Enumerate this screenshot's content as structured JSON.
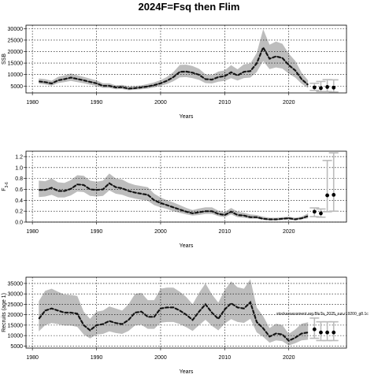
{
  "title": "2024F=Fsq then Flim",
  "note": "stockassessment.org BluTa_2025_run.r19200_g8.1c",
  "colors": {
    "band": "#bdbdbd",
    "line": "#222222",
    "proj": "#bbbbbb",
    "grid": "#000000"
  },
  "chart_data": [
    {
      "type": "line",
      "panel": "SSB",
      "ylabel": "SSB",
      "xlabel": "Years",
      "xlim": [
        1979,
        2029
      ],
      "ylim": [
        2000,
        31500
      ],
      "xticks": [
        1980,
        1990,
        2000,
        2010,
        2020
      ],
      "yticks": [
        5000,
        10000,
        15000,
        20000,
        25000,
        30000
      ],
      "grid": true,
      "x": [
        1981,
        1982,
        1983,
        1984,
        1985,
        1986,
        1987,
        1988,
        1989,
        1990,
        1991,
        1992,
        1993,
        1994,
        1995,
        1996,
        1997,
        1998,
        1999,
        2000,
        2001,
        2002,
        2003,
        2004,
        2005,
        2006,
        2007,
        2008,
        2009,
        2010,
        2011,
        2012,
        2013,
        2014,
        2015,
        2016,
        2017,
        2018,
        2019,
        2020,
        2021,
        2022,
        2023
      ],
      "estimate": [
        7000,
        6700,
        6100,
        7500,
        8000,
        8700,
        8100,
        7500,
        6800,
        6200,
        5100,
        5100,
        4400,
        4500,
        3900,
        4100,
        4400,
        4800,
        5400,
        6200,
        7300,
        8900,
        11200,
        11300,
        10800,
        9900,
        8000,
        7800,
        8900,
        9300,
        11000,
        9600,
        11200,
        11500,
        14900,
        21800,
        16900,
        17900,
        17200,
        14100,
        11800,
        8000,
        5500
      ],
      "lower": [
        6000,
        5700,
        5200,
        6300,
        6700,
        7200,
        6700,
        6200,
        5600,
        5100,
        4200,
        4200,
        3600,
        3700,
        3200,
        3400,
        3600,
        3900,
        4400,
        5100,
        5900,
        7100,
        8800,
        8900,
        8400,
        7700,
        6300,
        6100,
        6900,
        7200,
        8400,
        7400,
        8500,
        8700,
        11100,
        15900,
        12400,
        13100,
        12600,
        10400,
        8700,
        6000,
        4100
      ],
      "upper": [
        8300,
        8000,
        7300,
        9000,
        9600,
        10500,
        9700,
        9000,
        8200,
        7500,
        6200,
        6200,
        5300,
        5500,
        4800,
        5000,
        5300,
        5900,
        6600,
        7600,
        9000,
        11100,
        14200,
        14300,
        13700,
        12500,
        10100,
        9800,
        11300,
        11800,
        14100,
        12300,
        14500,
        14800,
        19400,
        29800,
        23000,
        24400,
        23400,
        19100,
        16000,
        10800,
        7500
      ],
      "projection": {
        "x": [
          2024,
          2025,
          2026,
          2027
        ],
        "estimate": [
          4400,
          4100,
          4600,
          4300
        ],
        "lower": [
          3100,
          2600,
          2600,
          2400
        ],
        "upper": [
          6200,
          7000,
          7800,
          7700
        ]
      }
    },
    {
      "type": "line",
      "panel": "F",
      "ylabel": "F",
      "ylabel_sub": "3-6",
      "xlabel": "Years",
      "xlim": [
        1979,
        2029
      ],
      "ylim": [
        0,
        1.3
      ],
      "xticks": [
        1980,
        1990,
        2000,
        2010,
        2020
      ],
      "yticks": [
        0.0,
        0.2,
        0.4,
        0.6,
        0.8,
        1.0,
        1.2
      ],
      "ytick_labels": [
        "0.0",
        "0.2",
        "0.4",
        "0.6",
        "0.8",
        "1.0",
        "1.2"
      ],
      "grid": true,
      "x": [
        1981,
        1982,
        1983,
        1984,
        1985,
        1986,
        1987,
        1988,
        1989,
        1990,
        1991,
        1992,
        1993,
        1994,
        1995,
        1996,
        1997,
        1998,
        1999,
        2000,
        2001,
        2002,
        2003,
        2004,
        2005,
        2006,
        2007,
        2008,
        2009,
        2010,
        2011,
        2012,
        2013,
        2014,
        2015,
        2016,
        2017,
        2018,
        2019,
        2020,
        2021,
        2022,
        2023
      ],
      "estimate": [
        0.59,
        0.59,
        0.63,
        0.57,
        0.57,
        0.61,
        0.69,
        0.68,
        0.6,
        0.59,
        0.6,
        0.71,
        0.64,
        0.62,
        0.57,
        0.54,
        0.52,
        0.5,
        0.4,
        0.35,
        0.31,
        0.27,
        0.23,
        0.19,
        0.16,
        0.18,
        0.2,
        0.2,
        0.15,
        0.13,
        0.19,
        0.13,
        0.12,
        0.09,
        0.09,
        0.06,
        0.05,
        0.05,
        0.06,
        0.07,
        0.05,
        0.07,
        0.11
      ],
      "lower": [
        0.46,
        0.47,
        0.5,
        0.45,
        0.45,
        0.49,
        0.56,
        0.55,
        0.48,
        0.47,
        0.48,
        0.58,
        0.52,
        0.5,
        0.46,
        0.43,
        0.41,
        0.39,
        0.31,
        0.27,
        0.24,
        0.2,
        0.17,
        0.14,
        0.12,
        0.13,
        0.15,
        0.15,
        0.11,
        0.09,
        0.14,
        0.09,
        0.08,
        0.06,
        0.06,
        0.04,
        0.03,
        0.03,
        0.04,
        0.05,
        0.03,
        0.05,
        0.07
      ],
      "upper": [
        0.76,
        0.75,
        0.8,
        0.73,
        0.72,
        0.77,
        0.86,
        0.85,
        0.76,
        0.74,
        0.76,
        0.89,
        0.8,
        0.78,
        0.72,
        0.68,
        0.66,
        0.64,
        0.52,
        0.45,
        0.4,
        0.36,
        0.31,
        0.26,
        0.22,
        0.25,
        0.27,
        0.27,
        0.21,
        0.18,
        0.26,
        0.19,
        0.17,
        0.14,
        0.13,
        0.1,
        0.08,
        0.08,
        0.09,
        0.1,
        0.08,
        0.1,
        0.16
      ],
      "projection": {
        "x": [
          2024,
          2025,
          2026,
          2027
        ],
        "estimate": [
          0.19,
          0.16,
          0.49,
          0.5
        ],
        "lower": [
          0.1,
          0.09,
          0.19,
          0.2
        ],
        "upper": [
          0.26,
          0.24,
          1.13,
          1.27
        ]
      }
    },
    {
      "type": "line",
      "panel": "Recruitment",
      "ylabel": "Recruits (age 1)",
      "xlabel": "Years",
      "xlim": [
        1979,
        2029
      ],
      "ylim": [
        4000,
        38000
      ],
      "xticks": [
        1980,
        1990,
        2000,
        2010,
        2020
      ],
      "yticks": [
        5000,
        10000,
        15000,
        20000,
        25000,
        30000,
        35000
      ],
      "grid": true,
      "x": [
        1981,
        1982,
        1983,
        1984,
        1985,
        1986,
        1987,
        1988,
        1989,
        1990,
        1991,
        1992,
        1993,
        1994,
        1995,
        1996,
        1997,
        1998,
        1999,
        2000,
        2001,
        2002,
        2003,
        2004,
        2005,
        2006,
        2007,
        2008,
        2009,
        2010,
        2011,
        2012,
        2013,
        2014,
        2015,
        2016,
        2017,
        2018,
        2019,
        2020,
        2021,
        2022,
        2023
      ],
      "estimate": [
        18000,
        22000,
        23000,
        22000,
        21000,
        21000,
        20500,
        15000,
        12500,
        15000,
        15500,
        17000,
        16000,
        15500,
        17500,
        21000,
        21500,
        19000,
        19000,
        23000,
        23500,
        23500,
        22000,
        20000,
        17500,
        21500,
        25000,
        21000,
        18000,
        22500,
        25500,
        23500,
        23000,
        26000,
        16500,
        13500,
        9500,
        11000,
        10500,
        7500,
        9000,
        11000,
        11500
      ],
      "lower": [
        12000,
        15000,
        16000,
        15500,
        14800,
        14800,
        14200,
        10500,
        8600,
        10500,
        10800,
        12000,
        11200,
        10800,
        12200,
        14800,
        15200,
        13200,
        13200,
        16200,
        16500,
        16500,
        15500,
        14000,
        12200,
        15000,
        17600,
        14700,
        12500,
        15700,
        17900,
        16500,
        16100,
        18000,
        11500,
        9400,
        6600,
        7700,
        7300,
        5200,
        6300,
        7700,
        8000
      ],
      "upper": [
        26500,
        31500,
        32500,
        31000,
        29700,
        29500,
        29000,
        21500,
        18000,
        21500,
        22000,
        24000,
        23000,
        22000,
        25000,
        30000,
        30500,
        27000,
        27000,
        32500,
        33000,
        33000,
        31000,
        28500,
        25000,
        30500,
        35000,
        29800,
        25800,
        31800,
        36000,
        33200,
        32500,
        37000,
        23500,
        19300,
        13600,
        15700,
        15000,
        10800,
        12900,
        15700,
        16400
      ],
      "projection": {
        "x": [
          2024,
          2025,
          2026,
          2027
        ],
        "estimate": [
          13000,
          11500,
          11500,
          11500
        ],
        "lower": [
          8700,
          7600,
          7600,
          7600
        ],
        "upper": [
          18400,
          16600,
          16600,
          16600
        ]
      }
    }
  ]
}
